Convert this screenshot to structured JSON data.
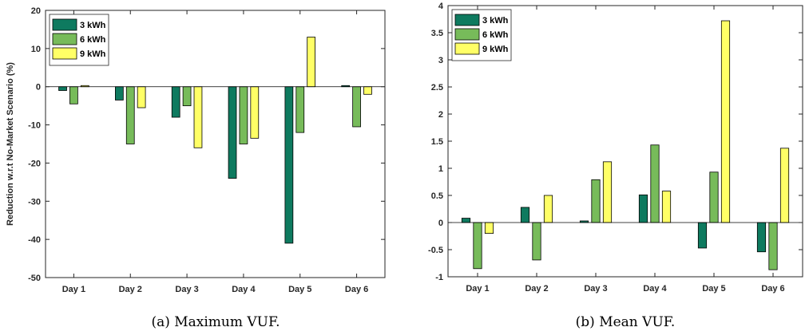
{
  "chart_data": [
    {
      "type": "bar",
      "caption": "(a) Maximum VUF.",
      "ylabel": "Reduction w.r.t No-Market Scenario (%)",
      "categories": [
        "Day 1",
        "Day 2",
        "Day 3",
        "Day 4",
        "Day 5",
        "Day 6"
      ],
      "ylim": [
        -50,
        20
      ],
      "yticks": [
        -50,
        -40,
        -30,
        -20,
        -10,
        0,
        10,
        20
      ],
      "grid": false,
      "legend": "top-left",
      "series": [
        {
          "name": "3 kWh",
          "color": "#0e7a5f",
          "values": [
            -1,
            -3.5,
            -8,
            -24,
            -41,
            0.3
          ]
        },
        {
          "name": "6 kWh",
          "color": "#77bb5a",
          "values": [
            -4.5,
            -15,
            -5,
            -15,
            -12,
            -10.5
          ]
        },
        {
          "name": "9 kWh",
          "color": "#ffff66",
          "values": [
            0.3,
            -5.5,
            -16,
            -13.5,
            13,
            -2
          ]
        }
      ]
    },
    {
      "type": "bar",
      "caption": "(b) Mean VUF.",
      "ylabel": "",
      "categories": [
        "Day 1",
        "Day 2",
        "Day 3",
        "Day 4",
        "Day 5",
        "Day 6"
      ],
      "ylim": [
        -1,
        4
      ],
      "yticks": [
        "-1",
        "-0.5",
        "0",
        "0.5",
        "1",
        "1.5",
        "2",
        "2.5",
        "3",
        "3.5",
        "4"
      ],
      "grid": false,
      "legend": "top-left",
      "series": [
        {
          "name": "3 kWh",
          "color": "#0e7a5f",
          "values": [
            0.08,
            0.28,
            0.03,
            0.51,
            -0.47,
            -0.54
          ]
        },
        {
          "name": "6 kWh",
          "color": "#77bb5a",
          "values": [
            -0.85,
            -0.69,
            0.79,
            1.43,
            0.93,
            -0.87
          ]
        },
        {
          "name": "9 kWh",
          "color": "#ffff66",
          "values": [
            -0.2,
            0.5,
            1.12,
            0.58,
            3.72,
            1.37
          ]
        }
      ]
    }
  ]
}
